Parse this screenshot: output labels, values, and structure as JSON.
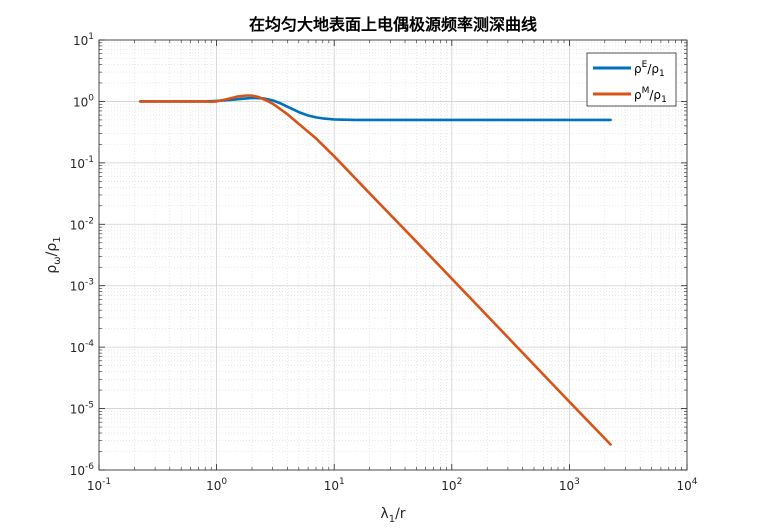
{
  "chart_data": {
    "type": "line",
    "title": "在均匀大地表面上电偶极源频率测深曲线",
    "xlabel": {
      "main": "λ",
      "sub": "1",
      "rest": "/r"
    },
    "ylabel": {
      "main": "ρ",
      "sub": "ω",
      "mid": "/ρ",
      "sub2": "1"
    },
    "xscale": "log",
    "yscale": "log",
    "xlim": [
      0.1,
      10000
    ],
    "ylim": [
      1e-06,
      10
    ],
    "x_ticks": [
      {
        "base": "10",
        "exp": "-1"
      },
      {
        "base": "10",
        "exp": "0"
      },
      {
        "base": "10",
        "exp": "1"
      },
      {
        "base": "10",
        "exp": "2"
      },
      {
        "base": "10",
        "exp": "3"
      },
      {
        "base": "10",
        "exp": "4"
      }
    ],
    "y_ticks": [
      {
        "base": "10",
        "exp": "-6"
      },
      {
        "base": "10",
        "exp": "-5"
      },
      {
        "base": "10",
        "exp": "-4"
      },
      {
        "base": "10",
        "exp": "-3"
      },
      {
        "base": "10",
        "exp": "-2"
      },
      {
        "base": "10",
        "exp": "-1"
      },
      {
        "base": "10",
        "exp": "0"
      },
      {
        "base": "10",
        "exp": "1"
      }
    ],
    "grid": true,
    "minor_grid": true,
    "legend_position": "top-right",
    "series": [
      {
        "name": {
          "main": "ρ",
          "sup": "E",
          "mid": "/ρ",
          "sub": "1"
        },
        "color": "#0072BD",
        "x": [
          0.224,
          0.5,
          0.8,
          1.0,
          1.3,
          1.6,
          2.0,
          2.5,
          3.0,
          3.5,
          4.0,
          5.0,
          6.0,
          7.0,
          8.0,
          10.0,
          12.0,
          15.0,
          20.0,
          30.0,
          50.0,
          100.0,
          300.0,
          1000.0,
          2240.0
        ],
        "y": [
          1.0,
          1.0,
          1.0,
          1.02,
          1.06,
          1.1,
          1.14,
          1.12,
          1.04,
          0.93,
          0.82,
          0.67,
          0.59,
          0.55,
          0.53,
          0.51,
          0.505,
          0.5,
          0.5,
          0.5,
          0.5,
          0.5,
          0.5,
          0.5,
          0.5
        ]
      },
      {
        "name": {
          "main": "ρ",
          "sup": "M",
          "mid": "/ρ",
          "sub": "1"
        },
        "color": "#D95319",
        "x": [
          0.224,
          0.5,
          0.8,
          0.9,
          1.0,
          1.2,
          1.5,
          1.8,
          2.0,
          2.3,
          2.7,
          3.0,
          4.0,
          5.0,
          7.0,
          10.0,
          20.0,
          50.0,
          100.0,
          300.0,
          1000.0,
          2240.0
        ],
        "y": [
          1.0,
          1.0,
          1.0,
          0.99,
          1.0,
          1.08,
          1.2,
          1.25,
          1.24,
          1.17,
          1.02,
          0.92,
          0.62,
          0.43,
          0.25,
          0.128,
          0.032,
          0.0052,
          0.0013,
          0.000144,
          1.29e-05,
          2.6e-06
        ]
      }
    ]
  }
}
